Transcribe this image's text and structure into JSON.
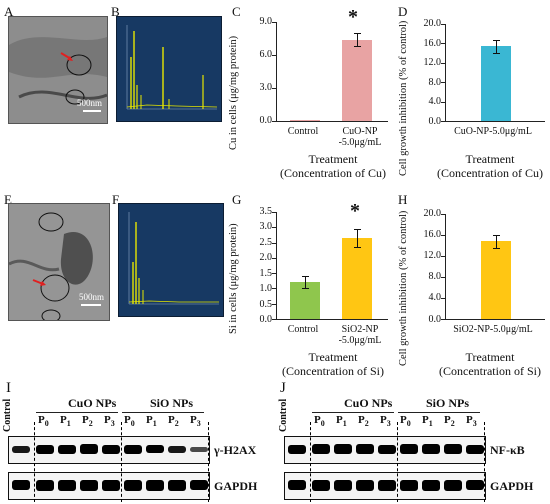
{
  "panels": {
    "A": {
      "label": "A",
      "scale": "500nm"
    },
    "B": {
      "label": "B"
    },
    "C": {
      "label": "C",
      "ylabel": "Cu in cells (μg/mg protein)",
      "xlabel_line1": "Treatment",
      "xlabel_line2": "(Concentration of Cu)",
      "ticks": [
        "9.0",
        "6.0",
        "3.0",
        "0.0"
      ],
      "star": "*",
      "categories": [
        "Control",
        "CuO-NP",
        "-5.0μg/mL"
      ]
    },
    "D": {
      "label": "D",
      "ylabel": "Cell growth inhibition (% of control)",
      "xlabel_line1": "Treatment",
      "xlabel_line2": "(Concentration of Cu)",
      "ticks": [
        "20.0",
        "16.0",
        "12.0",
        "8.0",
        "4.0",
        "0.0"
      ],
      "category": "CuO-NP-5.0μg/mL"
    },
    "E": {
      "label": "E",
      "scale": "500nm"
    },
    "F": {
      "label": "F"
    },
    "G": {
      "label": "G",
      "ylabel": "Si in cells (μg/mg protein)",
      "xlabel_line1": "Treatment",
      "xlabel_line2": "(Concentration of Si)",
      "ticks": [
        "3.5",
        "3.0",
        "2.5",
        "2.0",
        "1.5",
        "1.0",
        "0.5",
        "0.0"
      ],
      "star": "*",
      "categories": [
        "Control",
        "SiO2-NP",
        "-5.0μg/mL"
      ]
    },
    "H": {
      "label": "H",
      "ylabel": "Cell growth inhibition (% of control)",
      "xlabel_line1": "Treatment",
      "xlabel_line2": "(Concentration of Si)",
      "ticks": [
        "20.0",
        "16.0",
        "12.0",
        "8.0",
        "4.0",
        "0.0"
      ],
      "category": "SiO2-NP-5.0μg/mL"
    },
    "I": {
      "label": "I",
      "control": "Control",
      "group1": "CuO NPs",
      "group2": "SiO NPs",
      "target": "γ-H2AX",
      "loading": "GAPDH"
    },
    "J": {
      "label": "J",
      "control": "Control",
      "group1": "CuO NPs",
      "group2": "SiO NPs",
      "target": "NF-κB",
      "loading": "GAPDH"
    }
  },
  "lanes": [
    "P0",
    "P1",
    "P2",
    "P3",
    "P0",
    "P1",
    "P2",
    "P3"
  ],
  "chart_data": [
    {
      "type": "bar",
      "panel": "C",
      "categories": [
        "Control",
        "CuO-NP-5.0μg/mL"
      ],
      "values": [
        0.02,
        7.4
      ],
      "errors": [
        0.0,
        0.6
      ],
      "ylim": [
        0,
        9
      ],
      "colors": [
        "#e8a3a3",
        "#e8a3a3"
      ],
      "ylabel": "Cu in cells (μg/mg protein)",
      "xlabel": "Treatment (Concentration of Cu)"
    },
    {
      "type": "bar",
      "panel": "D",
      "categories": [
        "CuO-NP-5.0μg/mL"
      ],
      "values": [
        15.4
      ],
      "errors": [
        1.4
      ],
      "ylim": [
        0,
        20
      ],
      "colors": [
        "#3ab7d3"
      ],
      "ylabel": "Cell growth inhibition (% of control)",
      "xlabel": "Treatment (Concentration of Cu)"
    },
    {
      "type": "bar",
      "panel": "G",
      "categories": [
        "Control",
        "SiO2-NP-5.0μg/mL"
      ],
      "values": [
        1.2,
        2.65
      ],
      "errors": [
        0.2,
        0.3
      ],
      "ylim": [
        0,
        3.5
      ],
      "colors": [
        "#8fc64d",
        "#ffc613"
      ],
      "ylabel": "Si in cells (μg/mg protein)",
      "xlabel": "Treatment (Concentration of Si)"
    },
    {
      "type": "bar",
      "panel": "H",
      "categories": [
        "SiO2-NP-5.0μg/mL"
      ],
      "values": [
        14.8
      ],
      "errors": [
        1.2
      ],
      "ylim": [
        0,
        20
      ],
      "colors": [
        "#ffc613"
      ],
      "ylabel": "Cell growth inhibition (% of control)",
      "xlabel": "Treatment (Concentration of Si)"
    }
  ]
}
